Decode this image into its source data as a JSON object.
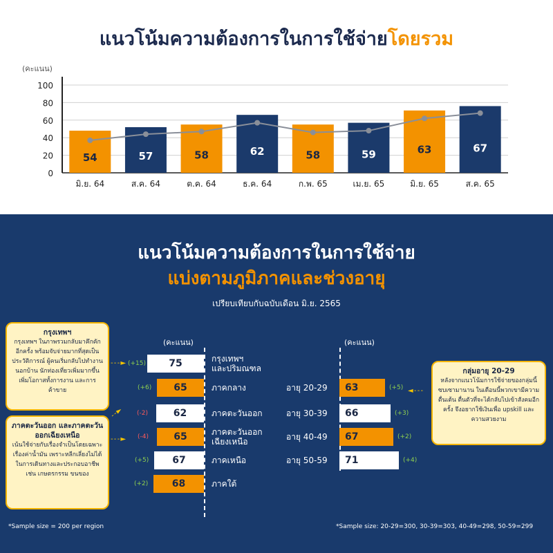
{
  "top": {
    "title_main": "แนวโน้มความต้องการในการใช้จ่าย",
    "title_highlight": "โดยรวม"
  },
  "chart_data": [
    {
      "type": "bar",
      "ylabel": "(คะแนน)",
      "ylim": [
        0,
        100
      ],
      "yticks": [
        0,
        20,
        40,
        60,
        80,
        100
      ],
      "grid": true,
      "categories": [
        "มิ.ย. 64",
        "ส.ค. 64",
        "ต.ค. 64",
        "ธ.ค. 64",
        "ก.พ. 65",
        "เม.ย. 65",
        "มิ.ย. 65",
        "ส.ค. 65"
      ],
      "values": [
        54,
        57,
        58,
        62,
        58,
        59,
        63,
        67
      ],
      "bar_heights": [
        48,
        52,
        55,
        66,
        55,
        57,
        71,
        76
      ],
      "trend_line": [
        37,
        44,
        47,
        57,
        46,
        48,
        62,
        68
      ],
      "bar_colors": [
        "#f39200",
        "#1b3a6b",
        "#f39200",
        "#1b3a6b",
        "#f39200",
        "#1b3a6b",
        "#f39200",
        "#1b3a6b"
      ]
    },
    {
      "type": "bar",
      "orientation": "horizontal",
      "ylabel": "(คะแนน)",
      "categories": [
        "กรุงเทพฯ และปริมณฑล",
        "ภาคกลาง",
        "ภาคตะวันออก",
        "ภาคตะวันออก เฉียงเหนือ",
        "ภาคเหนือ",
        "ภาคใต้"
      ],
      "values": [
        75,
        65,
        62,
        65,
        67,
        68
      ],
      "changes": [
        "(+15)",
        "(+6)",
        "(-2)",
        "(-4)",
        "(+5)",
        "(+2)"
      ]
    },
    {
      "type": "bar",
      "orientation": "horizontal",
      "ylabel": "(คะแนน)",
      "categories": [
        "อายุ 20-29",
        "อายุ 30-39",
        "อายุ 40-49",
        "อายุ 50-59"
      ],
      "values": [
        63,
        66,
        67,
        71
      ],
      "changes": [
        "(+5)",
        "(+3)",
        "(+2)",
        "(+4)"
      ]
    }
  ],
  "bottom": {
    "title1": "แนวโน้มความต้องการในการใช้จ่าย",
    "title2": "แบ่งตามภูมิภาคและช่วงอายุ",
    "subtitle": "เปรียบเทียบกับฉบับเดือน มิ.ย. 2565",
    "unit": "(คะแนน)",
    "regions": [
      {
        "label": "กรุงเทพฯ\nและปริมณฑล",
        "value": "75",
        "change": "(+15)"
      },
      {
        "label": "ภาคกลาง",
        "value": "65",
        "change": "(+6)"
      },
      {
        "label": "ภาคตะวันออก",
        "value": "62",
        "change": "(-2)"
      },
      {
        "label": "ภาคตะวันออก\nเฉียงเหนือ",
        "value": "65",
        "change": "(-4)"
      },
      {
        "label": "ภาคเหนือ",
        "value": "67",
        "change": "(+5)"
      },
      {
        "label": "ภาคใต้",
        "value": "68",
        "change": "(+2)"
      }
    ],
    "ages": [
      {
        "label": "อายุ 20-29",
        "value": "63",
        "change": "(+5)"
      },
      {
        "label": "อายุ 30-39",
        "value": "66",
        "change": "(+3)"
      },
      {
        "label": "อายุ 40-49",
        "value": "67",
        "change": "(+2)"
      },
      {
        "label": "อายุ 50-59",
        "value": "71",
        "change": "(+4)"
      }
    ],
    "callout_bkk": {
      "title": "กรุงเทพฯ",
      "text": "กรุงเทพฯ ในภาพรวมกลับมาคึกคักอีกครั้ง พร้อมจับจ่ายมากที่สุดเป็นประวัติการณ์ ผู้คนเริ่มกลับไปทำงานนอกบ้าน นักท่องเที่ยวเพิ่มมากขึ้น เพิ่มโอกาสทั้งการงาน และการค้าขาย"
    },
    "callout_east": {
      "title": "ภาคตะวันออก และภาคตะวันออกเฉียงเหนือ",
      "text": "เน้นใช้จ่ายกับเรื่องจำเป็นโดยเฉพาะเรื่องค่าน้ำมัน เพราะหลีกเลี่ยงไม่ได้ในการเดินทางและประกอบอาชีพ เช่น เกษตรกรรม ขนของ"
    },
    "callout_age": {
      "title": "กลุ่มอายุ 20-29",
      "text": "หลังจากแนวโน้มการใช้จ่ายของกลุ่มนี้ซบเซามานาน ในเดือนนี้พวกเขามีความตื่นเต้น ตื่นตัวที่จะได้กลับไปเข้าสังคมอีกครั้ง จึงอยากใช้เงินเพื่อ upskill และความสวยงาม"
    },
    "footnote_left": "*Sample size = 200 per region",
    "footnote_right": "*Sample size: 20-29=300, 30-39=303, 40-49=298, 50-59=299"
  }
}
